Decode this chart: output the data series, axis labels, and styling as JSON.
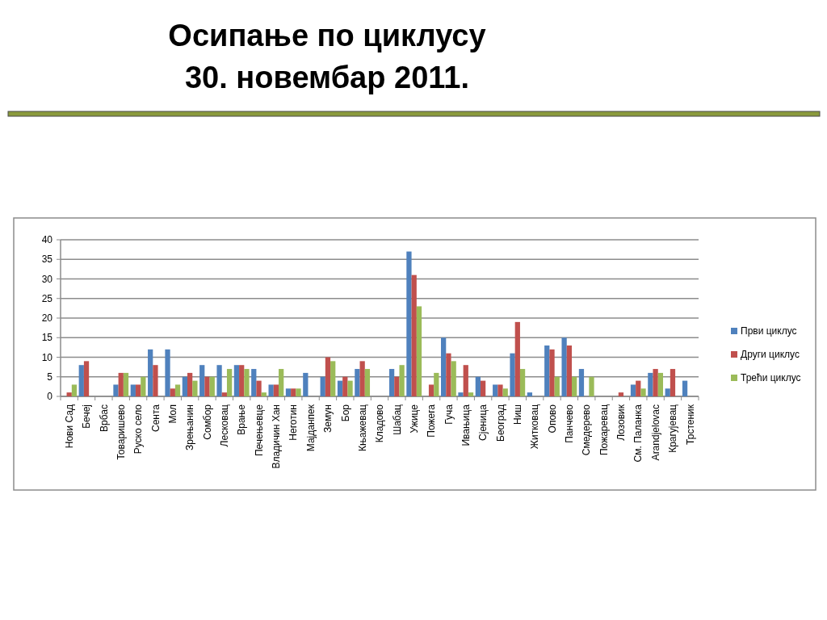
{
  "chart_data": {
    "type": "bar",
    "title": "Осипање по циклусу",
    "subtitle": "30. новембар 2011.",
    "categories": [
      "Нови Сад",
      "Бечеј",
      "Врбас",
      "Товаришево",
      "Руско село",
      "Сента",
      "Мол",
      "Зрењанин",
      "Сомбор",
      "Лесковац",
      "Врање",
      "Печењевце",
      "Владичин Хан",
      "Неготин",
      "Мајданпек",
      "Земун",
      "Бор",
      "Књажевац",
      "Кладово",
      "Шабац",
      "Ужице",
      "Пожега",
      "Гуча",
      "Ивањица",
      "Сјеница",
      "Београд",
      "Ниш",
      "Житковац",
      "Опово",
      "Панчево",
      "Смедерево",
      "Пожаревац",
      "Лозовик",
      "См. Паланка",
      "Arandjelovac",
      "Крагујевац",
      "Трстеник"
    ],
    "series": [
      {
        "name": "Први циклус",
        "color": "#4f81bd",
        "values": [
          0,
          8,
          0,
          3,
          3,
          12,
          12,
          5,
          8,
          8,
          8,
          7,
          3,
          2,
          6,
          5,
          4,
          7,
          0,
          7,
          37,
          0,
          15,
          1,
          5,
          3,
          11,
          1,
          13,
          15,
          7,
          0,
          0,
          3,
          6,
          2,
          4
        ]
      },
      {
        "name": "Други циклус",
        "color": "#c0504d",
        "values": [
          1,
          9,
          0,
          6,
          3,
          8,
          2,
          6,
          5,
          1,
          8,
          4,
          3,
          2,
          0,
          10,
          5,
          9,
          0,
          5,
          31,
          3,
          11,
          8,
          4,
          3,
          19,
          0,
          12,
          13,
          0,
          0,
          1,
          4,
          7,
          7,
          0
        ]
      },
      {
        "name": "Трећи циклус",
        "color": "#9bbb59",
        "values": [
          3,
          0,
          0,
          6,
          5,
          0,
          3,
          4,
          5,
          7,
          7,
          1,
          7,
          2,
          0,
          9,
          4,
          7,
          0,
          8,
          23,
          6,
          9,
          1,
          0,
          2,
          7,
          0,
          5,
          5,
          5,
          0,
          0,
          2,
          6,
          0,
          0
        ]
      }
    ],
    "ylim": [
      0,
      40
    ],
    "yticks": [
      0,
      5,
      10,
      15,
      20,
      25,
      30,
      35,
      40
    ],
    "grid": "y",
    "legend": "right"
  }
}
